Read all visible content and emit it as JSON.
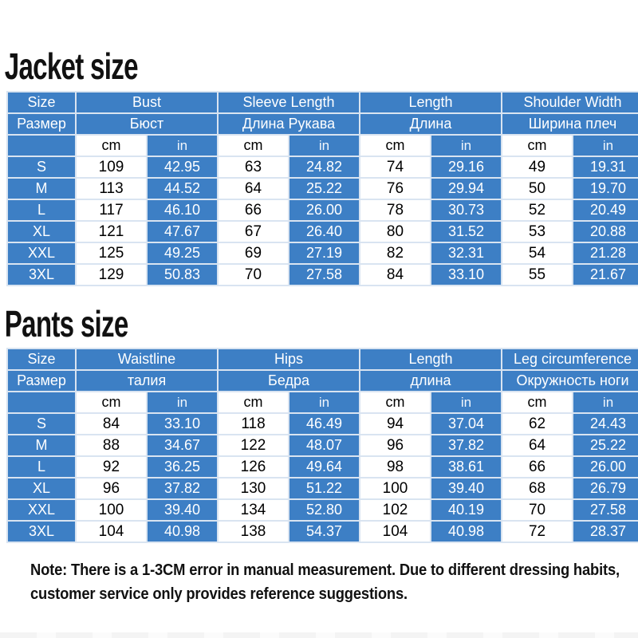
{
  "units": {
    "cm": "cm",
    "in": "in"
  },
  "colors": {
    "table_blue": "#3d7fc5",
    "grid_line": "#d9e4f1",
    "text_dark": "#111111"
  },
  "jacket": {
    "title": "Jacket size",
    "columns": [
      {
        "en": "Size",
        "ru": "Размер"
      },
      {
        "en": "Bust",
        "ru": "Бюст"
      },
      {
        "en": "Sleeve Length",
        "ru": "Длина Рукава"
      },
      {
        "en": "Length",
        "ru": "Длина"
      },
      {
        "en": "Shoulder Width",
        "ru": "Ширина плеч"
      }
    ],
    "rows": [
      {
        "size": "S",
        "values": [
          "109",
          "42.95",
          "63",
          "24.82",
          "74",
          "29.16",
          "49",
          "19.31"
        ]
      },
      {
        "size": "M",
        "values": [
          "113",
          "44.52",
          "64",
          "25.22",
          "76",
          "29.94",
          "50",
          "19.70"
        ]
      },
      {
        "size": "L",
        "values": [
          "117",
          "46.10",
          "66",
          "26.00",
          "78",
          "30.73",
          "52",
          "20.49"
        ]
      },
      {
        "size": "XL",
        "values": [
          "121",
          "47.67",
          "67",
          "26.40",
          "80",
          "31.52",
          "53",
          "20.88"
        ]
      },
      {
        "size": "XXL",
        "values": [
          "125",
          "49.25",
          "69",
          "27.19",
          "82",
          "32.31",
          "54",
          "21.28"
        ]
      },
      {
        "size": "3XL",
        "values": [
          "129",
          "50.83",
          "70",
          "27.58",
          "84",
          "33.10",
          "55",
          "21.67"
        ]
      }
    ]
  },
  "pants": {
    "title": "Pants size",
    "columns": [
      {
        "en": "Size",
        "ru": "Размер"
      },
      {
        "en": "Waistline",
        "ru": "талия"
      },
      {
        "en": "Hips",
        "ru": "Бедра"
      },
      {
        "en": "Length",
        "ru": "длина"
      },
      {
        "en": "Leg circumference",
        "ru": "Окружность ноги"
      }
    ],
    "rows": [
      {
        "size": "S",
        "values": [
          "84",
          "33.10",
          "118",
          "46.49",
          "94",
          "37.04",
          "62",
          "24.43"
        ]
      },
      {
        "size": "M",
        "values": [
          "88",
          "34.67",
          "122",
          "48.07",
          "96",
          "37.82",
          "64",
          "25.22"
        ]
      },
      {
        "size": "L",
        "values": [
          "92",
          "36.25",
          "126",
          "49.64",
          "98",
          "38.61",
          "66",
          "26.00"
        ]
      },
      {
        "size": "XL",
        "values": [
          "96",
          "37.82",
          "130",
          "51.22",
          "100",
          "39.40",
          "68",
          "26.79"
        ]
      },
      {
        "size": "XXL",
        "values": [
          "100",
          "39.40",
          "134",
          "52.80",
          "102",
          "40.19",
          "70",
          "27.58"
        ]
      },
      {
        "size": "3XL",
        "values": [
          "104",
          "40.98",
          "138",
          "54.37",
          "104",
          "40.98",
          "72",
          "28.37"
        ]
      }
    ]
  },
  "note": {
    "line1": "Note: There is a 1-3CM error in manual measurement. Due to different dressing habits,",
    "line2": "customer service only provides reference suggestions."
  }
}
